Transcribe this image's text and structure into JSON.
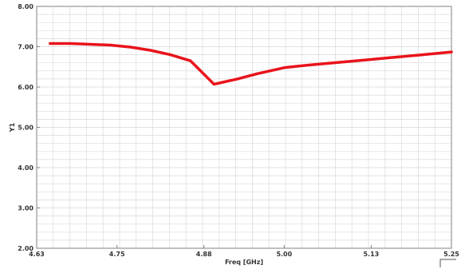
{
  "chart_data": {
    "type": "line",
    "title": "",
    "xlabel": "Freq [GHz]",
    "ylabel": "Y1",
    "xlim": [
      4.63,
      5.25
    ],
    "ylim": [
      2.0,
      8.0
    ],
    "x_tick_labels": [
      "4.63",
      "4.75",
      "4.88",
      "5.00",
      "5.13",
      "5.25"
    ],
    "x_ticks": [
      4.63,
      4.75,
      4.88,
      5.0,
      5.13,
      5.25
    ],
    "y_tick_labels": [
      "2.00",
      "3.00",
      "4.00",
      "5.00",
      "6.00",
      "7.00",
      "8.00"
    ],
    "y_ticks": [
      2.0,
      3.0,
      4.0,
      5.0,
      6.0,
      7.0,
      8.0
    ],
    "grid": true,
    "legend": "none",
    "colors": {
      "line": "#e8141b",
      "grid": "#d9d9d9",
      "frame": "#808080"
    },
    "series": [
      {
        "x": [
          4.65,
          4.68,
          4.71,
          4.74,
          4.77,
          4.8,
          4.83,
          4.86,
          4.895,
          4.93,
          4.96,
          5.0,
          5.04,
          5.08,
          5.12,
          5.16,
          5.2,
          5.25
        ],
        "y": [
          7.08,
          7.08,
          7.06,
          7.04,
          6.99,
          6.91,
          6.8,
          6.65,
          6.07,
          6.2,
          6.33,
          6.48,
          6.55,
          6.61,
          6.67,
          6.73,
          6.79,
          6.87
        ]
      }
    ]
  }
}
